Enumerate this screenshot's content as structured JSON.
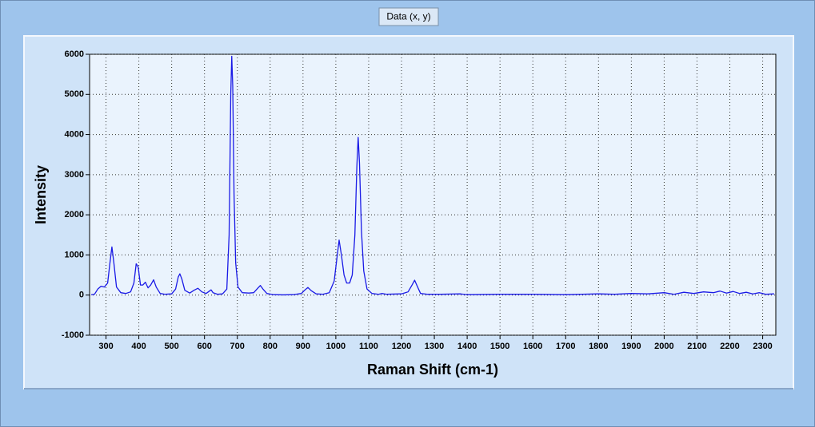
{
  "chart_data": {
    "type": "line",
    "title": "Data (x, y)",
    "x_label": "Raman Shift (cm-1)",
    "y_label": "Intensity",
    "x": [
      255,
      265,
      275,
      285,
      295,
      305,
      312,
      318,
      324,
      332,
      345,
      360,
      375,
      385,
      392,
      398,
      405,
      412,
      420,
      428,
      436,
      445,
      453,
      465,
      480,
      500,
      512,
      520,
      525,
      531,
      540,
      555,
      568,
      580,
      592,
      605,
      615,
      620,
      626,
      640,
      655,
      668,
      675,
      680,
      683,
      686,
      690,
      695,
      702,
      715,
      735,
      750,
      762,
      770,
      778,
      790,
      810,
      840,
      870,
      895,
      905,
      915,
      925,
      940,
      960,
      980,
      995,
      1003,
      1010,
      1017,
      1025,
      1033,
      1042,
      1050,
      1058,
      1064,
      1068,
      1072,
      1078,
      1085,
      1095,
      1110,
      1130,
      1140,
      1155,
      1175,
      1200,
      1220,
      1232,
      1240,
      1248,
      1258,
      1280,
      1320,
      1380,
      1400,
      1500,
      1600,
      1700,
      1800,
      1850,
      1900,
      1950,
      2000,
      2030,
      2060,
      2090,
      2120,
      2150,
      2170,
      2190,
      2210,
      2230,
      2250,
      2270,
      2290,
      2310,
      2335
    ],
    "series": [
      {
        "color": "#1a1ae6",
        "values": [
          10,
          20,
          150,
          220,
          200,
          300,
          800,
          1200,
          800,
          200,
          60,
          40,
          80,
          300,
          780,
          700,
          250,
          250,
          320,
          180,
          250,
          380,
          200,
          40,
          20,
          30,
          150,
          450,
          530,
          400,
          120,
          50,
          120,
          170,
          80,
          40,
          100,
          130,
          60,
          20,
          30,
          150,
          1500,
          5000,
          5950,
          5200,
          2500,
          800,
          200,
          60,
          50,
          60,
          170,
          240,
          150,
          40,
          10,
          5,
          10,
          40,
          120,
          190,
          110,
          30,
          20,
          60,
          350,
          900,
          1370,
          1000,
          500,
          300,
          300,
          500,
          1500,
          3200,
          3930,
          3300,
          1600,
          600,
          150,
          40,
          20,
          40,
          20,
          25,
          30,
          80,
          250,
          370,
          220,
          40,
          20,
          20,
          30,
          10,
          20,
          20,
          10,
          30,
          20,
          40,
          30,
          60,
          20,
          70,
          40,
          80,
          60,
          100,
          50,
          90,
          40,
          70,
          30,
          60,
          20,
          30
        ]
      }
    ],
    "xlim": [
      250,
      2340
    ],
    "ylim": [
      -1000,
      6000
    ],
    "xticks": [
      300,
      400,
      500,
      600,
      700,
      800,
      900,
      1000,
      1100,
      1200,
      1300,
      1400,
      1500,
      1600,
      1700,
      1800,
      1900,
      2000,
      2100,
      2200,
      2300
    ],
    "yticks": [
      -1000,
      0,
      1000,
      2000,
      3000,
      4000,
      5000,
      6000
    ],
    "grid": true
  }
}
